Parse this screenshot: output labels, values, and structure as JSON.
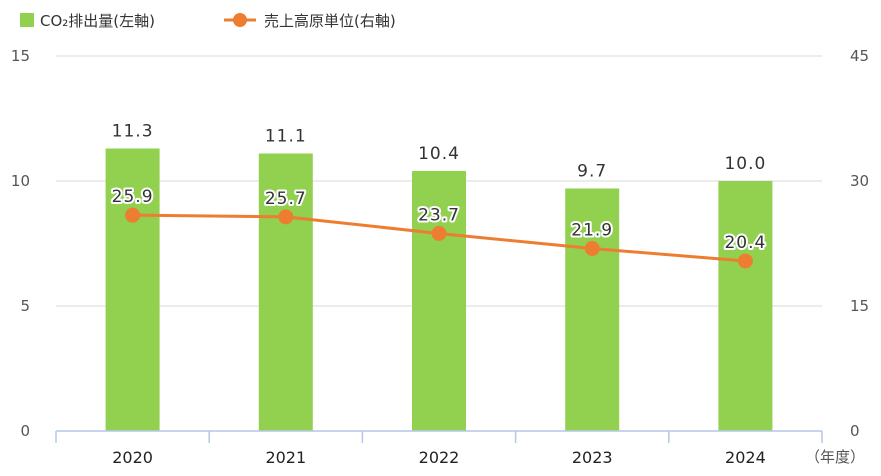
{
  "chart_data": {
    "type": "bar",
    "categories": [
      "2020",
      "2021",
      "2022",
      "2023",
      "2024"
    ],
    "series": [
      {
        "name": "CO₂排出量(左軸)",
        "type": "bar",
        "axis": "left",
        "color": "#92d050",
        "values": [
          11.3,
          11.1,
          10.4,
          9.7,
          10.0
        ],
        "labels": [
          "11.3",
          "11.1",
          "10.4",
          "9.7",
          "10.0"
        ]
      },
      {
        "name": "売上高原単位(右軸)",
        "type": "line",
        "axis": "right",
        "color": "#ed7d31",
        "values": [
          25.9,
          25.7,
          23.7,
          21.9,
          20.4
        ],
        "labels": [
          "25.9",
          "25.7",
          "23.7",
          "21.9",
          "20.4"
        ]
      }
    ],
    "y_left": {
      "min": 0,
      "max": 15,
      "ticks": [
        "0",
        "5",
        "10",
        "15"
      ]
    },
    "y_right": {
      "min": 0,
      "max": 45,
      "ticks": [
        "0",
        "15",
        "30",
        "45"
      ]
    },
    "x_unit": "（年度）",
    "legend_position": "top-left",
    "grid": true
  }
}
